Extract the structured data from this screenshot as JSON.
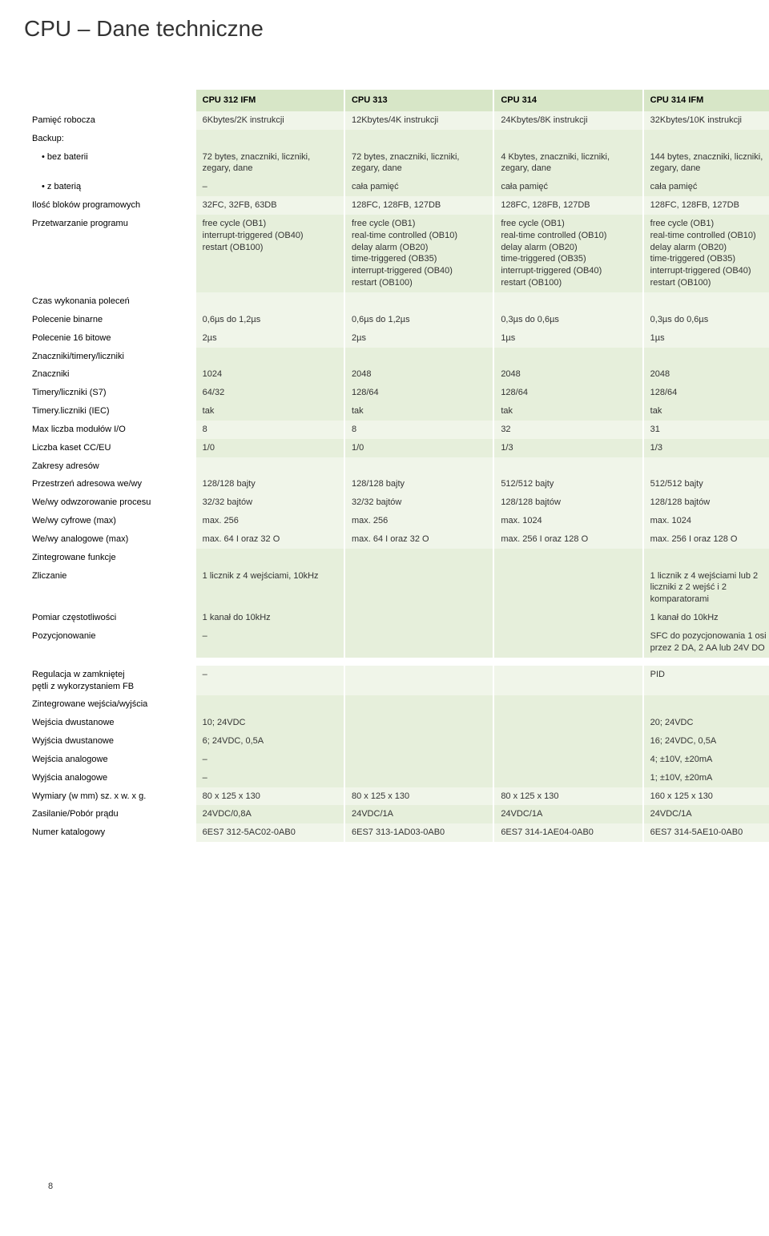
{
  "page": {
    "title": "CPU – Dane techniczne",
    "pageNumber": "8"
  },
  "columns": [
    "CPU 312 IFM",
    "CPU 313",
    "CPU 314",
    "CPU 314 IFM"
  ],
  "rows": {
    "workingMemory": {
      "label": "Pamięć robocza",
      "vals": [
        "6Kbytes/2K instrukcji",
        "12Kbytes/4K instrukcji",
        "24Kbytes/8K instrukcji",
        "32Kbytes/10K instrukcji"
      ]
    },
    "backup": {
      "label": "Backup:"
    },
    "backup_noBattery": {
      "label": "• bez baterii",
      "vals": [
        "72 bytes, znaczniki, liczniki, zegary, dane",
        "72 bytes, znaczniki, liczniki, zegary, dane",
        "4 Kbytes, znaczniki, liczniki, zegary, dane",
        "144 bytes, znaczniki, liczniki, zegary, dane"
      ]
    },
    "backup_withBattery": {
      "label": "• z baterią",
      "vals": [
        "–",
        "cała pamięć",
        "cała pamięć",
        "cała pamięć"
      ]
    },
    "programBlocks": {
      "label": "Ilość bloków programowych",
      "vals": [
        "32FC, 32FB, 63DB",
        "128FC, 128FB, 127DB",
        "128FC, 128FB, 127DB",
        "128FC, 128FB, 127DB"
      ]
    },
    "programProcessing": {
      "label": "Przetwarzanie programu",
      "vals": [
        "free cycle (OB1)\ninterrupt-triggered (OB40)\nrestart (OB100)",
        "free cycle (OB1)\nreal-time controlled (OB10)\ndelay alarm (OB20)\ntime-triggered (OB35)\ninterrupt-triggered (OB40)\nrestart (OB100)",
        "free cycle (OB1)\nreal-time controlled (OB10)\ndelay alarm (OB20)\ntime-triggered (OB35)\ninterrupt-triggered (OB40)\nrestart (OB100)",
        "free cycle (OB1)\nreal-time controlled (OB10)\ndelay alarm (OB20)\ntime-triggered (OB35)\ninterrupt-triggered (OB40)\nrestart (OB100)"
      ]
    },
    "execTime": {
      "label": "Czas wykonania poleceń"
    },
    "binInstr": {
      "label": "Polecenie binarne",
      "vals": [
        "0,6µs do 1,2µs",
        "0,6µs do 1,2µs",
        "0,3µs do 0,6µs",
        "0,3µs do 0,6µs"
      ]
    },
    "word16": {
      "label": "Polecenie 16 bitowe",
      "vals": [
        "2µs",
        "2µs",
        "1µs",
        "1µs"
      ]
    },
    "markersTimers": {
      "label": "Znaczniki/timery/liczniki"
    },
    "markers": {
      "label": "Znaczniki",
      "vals": [
        "1024",
        "2048",
        "2048",
        "2048"
      ]
    },
    "timersS7": {
      "label": "Timery/liczniki (S7)",
      "vals": [
        "64/32",
        "128/64",
        "128/64",
        "128/64"
      ]
    },
    "timersIEC": {
      "label": "Timery.liczniki (IEC)",
      "vals": [
        "tak",
        "tak",
        "tak",
        "tak"
      ]
    },
    "maxIO": {
      "label": "Max liczba modułów I/O",
      "vals": [
        "8",
        "8",
        "32",
        "31"
      ]
    },
    "racks": {
      "label": "Liczba kaset CC/EU",
      "vals": [
        "1/0",
        "1/0",
        "1/3",
        "1/3"
      ]
    },
    "addressRanges": {
      "label": "Zakresy adresów"
    },
    "addrSpace": {
      "label": "Przestrzeń adresowa we/wy",
      "vals": [
        "128/128 bajty",
        "128/128 bajty",
        "512/512 bajty",
        "512/512 bajty"
      ]
    },
    "processImage": {
      "label": "We/wy odwzorowanie procesu",
      "vals": [
        "32/32 bajtów",
        "32/32 bajtów",
        "128/128 bajtów",
        "128/128 bajtów"
      ]
    },
    "digitalMax": {
      "label": "We/wy cyfrowe (max)",
      "vals": [
        "max. 256",
        "max. 256",
        "max. 1024",
        "max. 1024"
      ]
    },
    "analogMax": {
      "label": "We/wy analogowe (max)",
      "vals": [
        "max. 64 I oraz 32 O",
        "max. 64 I oraz 32 O",
        "max. 256 I oraz 128 O",
        "max. 256 I oraz 128 O"
      ]
    },
    "integratedFunc": {
      "label": "Zintegrowane funkcje"
    },
    "counting": {
      "label": "Zliczanie",
      "vals": [
        "1 licznik z 4 wejściami, 10kHz",
        "",
        "",
        "1 licznik z 4 wejściami lub 2 liczniki z 2 wejść\ni 2 komparatorami"
      ]
    },
    "freqMeas": {
      "label": "Pomiar częstotliwości",
      "vals": [
        "1 kanał do 10kHz",
        "",
        "",
        "1 kanał do 10kHz"
      ]
    },
    "positioning": {
      "label": "Pozycjonowanie",
      "vals": [
        "–",
        "",
        "",
        "SFC do pozycjonowania 1 osi przez 2 DA, 2 AA lub 24V DO"
      ]
    },
    "closedLoop": {
      "label": "Regulacja w zamkniętej\npętli z wykorzystaniem FB",
      "vals": [
        "–",
        "",
        "",
        "PID"
      ]
    },
    "integratedIO": {
      "label": "Zintegrowane wejścia/wyjścia"
    },
    "digIn": {
      "label": "Wejścia dwustanowe",
      "vals": [
        "10; 24VDC",
        "",
        "",
        "20; 24VDC"
      ]
    },
    "digOut": {
      "label": "Wyjścia dwustanowe",
      "vals": [
        "6; 24VDC, 0,5A",
        "",
        "",
        "16; 24VDC, 0,5A"
      ]
    },
    "anaIn": {
      "label": "Wejścia analogowe",
      "vals": [
        "–",
        "",
        "",
        "4; ±10V, ±20mA"
      ]
    },
    "anaOut": {
      "label": "Wyjścia analogowe",
      "vals": [
        "–",
        "",
        "",
        "1; ±10V, ±20mA"
      ]
    },
    "dimensions": {
      "label": "Wymiary (w mm) sz. x w. x g.",
      "vals": [
        "80 x 125 x 130",
        "80 x 125 x 130",
        "80 x 125 x 130",
        "160 x 125 x 130"
      ]
    },
    "power": {
      "label": "Zasilanie/Pobór prądu",
      "vals": [
        "24VDC/0,8A",
        "24VDC/1A",
        "24VDC/1A",
        "24VDC/1A"
      ]
    },
    "orderNo": {
      "label": "Numer katalogowy",
      "vals": [
        "6ES7 312-5AC02-0AB0",
        "6ES7 313-1AD03-0AB0",
        "6ES7 314-1AE04-0AB0",
        "6ES7 314-5AE10-0AB0"
      ]
    }
  }
}
